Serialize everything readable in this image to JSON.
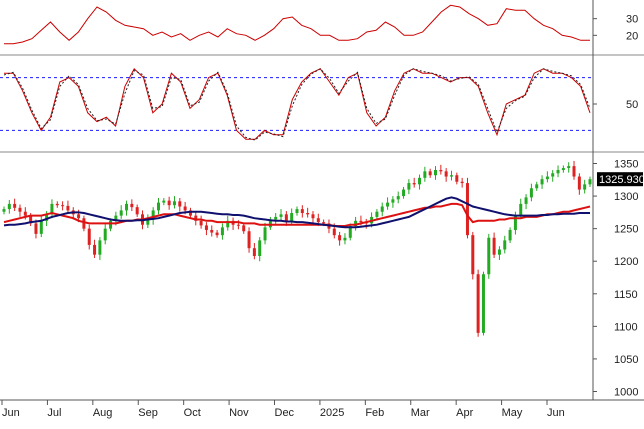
{
  "chart_data": [
    {
      "type": "line",
      "panel": "adx",
      "title": "",
      "ylim": [
        10,
        40
      ],
      "y_ticks": [
        20,
        30
      ],
      "grid": false,
      "series": [
        {
          "values": [
            15,
            15,
            16,
            18,
            23,
            28,
            22,
            17,
            22,
            30,
            37,
            34,
            29,
            26,
            25,
            24,
            20,
            22,
            19,
            21,
            17,
            20,
            22,
            19,
            24,
            21,
            20,
            17,
            20,
            24,
            30,
            31,
            26,
            24,
            20,
            20,
            17,
            17,
            18,
            22,
            23,
            28,
            25,
            20,
            20,
            22,
            28,
            34,
            38,
            37,
            33,
            30,
            26,
            27,
            36,
            35,
            35,
            30,
            26,
            24,
            20,
            19,
            17,
            17
          ]
        }
      ]
    },
    {
      "type": "line",
      "panel": "stochastic",
      "title": "",
      "ylim": [
        0,
        100
      ],
      "y_ticks": [
        50
      ],
      "reference_lines": [
        80,
        20
      ],
      "grid": false,
      "series": [
        {
          "values": [
            85,
            85,
            65,
            40,
            20,
            35,
            75,
            80,
            70,
            40,
            30,
            35,
            25,
            70,
            90,
            80,
            40,
            50,
            85,
            75,
            45,
            55,
            80,
            85,
            60,
            20,
            10,
            10,
            20,
            15,
            15,
            55,
            75,
            85,
            90,
            75,
            60,
            80,
            85,
            40,
            25,
            35,
            65,
            85,
            90,
            85,
            85,
            80,
            75,
            80,
            80,
            70,
            40,
            15,
            50,
            55,
            60,
            85,
            90,
            85,
            85,
            80,
            70,
            40
          ]
        },
        {
          "values": [
            83,
            86,
            68,
            43,
            22,
            32,
            70,
            82,
            72,
            45,
            31,
            33,
            27,
            62,
            88,
            83,
            45,
            47,
            80,
            78,
            48,
            52,
            76,
            86,
            63,
            25,
            12,
            9,
            18,
            16,
            13,
            48,
            72,
            84,
            90,
            79,
            62,
            76,
            86,
            45,
            28,
            33,
            60,
            83,
            90,
            87,
            85,
            82,
            76,
            79,
            81,
            72,
            45,
            18,
            45,
            54,
            59,
            80,
            90,
            87,
            85,
            82,
            72,
            45
          ]
        }
      ]
    },
    {
      "type": "candlestick",
      "panel": "price",
      "title": "",
      "ylim": [
        990,
        1360
      ],
      "y_ticks": [
        1000,
        1050,
        1100,
        1150,
        1200,
        1250,
        1300,
        1350
      ],
      "last_value_label": "1325.930",
      "grid": false,
      "x_labels": [
        "Jun",
        "Jul",
        "Aug",
        "Sep",
        "Oct",
        "Nov",
        "Dec",
        "2025",
        "Feb",
        "Mar",
        "Apr",
        "May",
        "Jun"
      ],
      "close": [
        1280,
        1288,
        1282,
        1276,
        1270,
        1258,
        1242,
        1262,
        1272,
        1288,
        1286,
        1285,
        1278,
        1272,
        1266,
        1250,
        1225,
        1210,
        1232,
        1250,
        1262,
        1270,
        1278,
        1288,
        1283,
        1272,
        1256,
        1264,
        1278,
        1290,
        1293,
        1286,
        1292,
        1284,
        1278,
        1270,
        1262,
        1255,
        1248,
        1244,
        1240,
        1252,
        1262,
        1256,
        1255,
        1246,
        1220,
        1208,
        1232,
        1252,
        1264,
        1268,
        1272,
        1262,
        1274,
        1280,
        1274,
        1272,
        1266,
        1260,
        1258,
        1250,
        1240,
        1232,
        1236,
        1254,
        1262,
        1260,
        1258,
        1268,
        1276,
        1284,
        1290,
        1295,
        1300,
        1310,
        1320,
        1318,
        1328,
        1338,
        1332,
        1340,
        1338,
        1330,
        1332,
        1322,
        1320,
        1240,
        1180,
        1090,
        1180,
        1236,
        1210,
        1218,
        1232,
        1248,
        1270,
        1288,
        1298,
        1312,
        1318,
        1326,
        1330,
        1335,
        1340,
        1343,
        1346,
        1330,
        1310,
        1318,
        1325.93
      ],
      "series": [
        {
          "name": "",
          "values": [
            1260,
            1262,
            1264,
            1266,
            1268,
            1270,
            1270,
            1270,
            1272,
            1274,
            1272,
            1270,
            1268,
            1266,
            1262,
            1260,
            1258,
            1258,
            1258,
            1258,
            1258,
            1258,
            1260,
            1262,
            1262,
            1264,
            1264,
            1266,
            1268,
            1270,
            1272,
            1272,
            1272,
            1270,
            1268,
            1266,
            1264,
            1264,
            1262,
            1262,
            1260,
            1260,
            1260,
            1260,
            1260,
            1258,
            1258,
            1258,
            1256,
            1256,
            1256,
            1256,
            1256,
            1256,
            1256,
            1256,
            1256,
            1256,
            1256,
            1256,
            1256,
            1256,
            1254,
            1254,
            1254,
            1256,
            1256,
            1258,
            1260,
            1262,
            1264,
            1266,
            1268,
            1270,
            1272,
            1274,
            1276,
            1278,
            1280,
            1282,
            1282,
            1284,
            1284,
            1286,
            1288,
            1288,
            1286,
            1270,
            1260,
            1262,
            1262,
            1262,
            1262,
            1264,
            1264,
            1266,
            1266,
            1266,
            1268,
            1268,
            1268,
            1270,
            1272,
            1272,
            1274,
            1276,
            1276,
            1278,
            1280,
            1282,
            1284
          ]
        },
        {
          "name": "",
          "values": [
            1255,
            1256,
            1256,
            1257,
            1258,
            1260,
            1261,
            1262,
            1265,
            1268,
            1270,
            1272,
            1274,
            1275,
            1275,
            1274,
            1272,
            1270,
            1268,
            1266,
            1264,
            1263,
            1262,
            1262,
            1262,
            1263,
            1263,
            1264,
            1265,
            1266,
            1268,
            1270,
            1272,
            1274,
            1275,
            1276,
            1276,
            1276,
            1275,
            1274,
            1273,
            1272,
            1272,
            1271,
            1271,
            1270,
            1268,
            1266,
            1265,
            1264,
            1263,
            1262,
            1262,
            1261,
            1261,
            1260,
            1260,
            1259,
            1258,
            1257,
            1256,
            1255,
            1254,
            1253,
            1252,
            1252,
            1252,
            1253,
            1254,
            1255,
            1256,
            1258,
            1260,
            1262,
            1264,
            1266,
            1268,
            1272,
            1276,
            1280,
            1284,
            1288,
            1292,
            1296,
            1298,
            1296,
            1292,
            1288,
            1284,
            1282,
            1280,
            1278,
            1276,
            1274,
            1272,
            1271,
            1270,
            1270,
            1270,
            1270,
            1270,
            1271,
            1271,
            1272,
            1272,
            1273,
            1273,
            1273,
            1274,
            1274,
            1274
          ]
        }
      ]
    }
  ]
}
